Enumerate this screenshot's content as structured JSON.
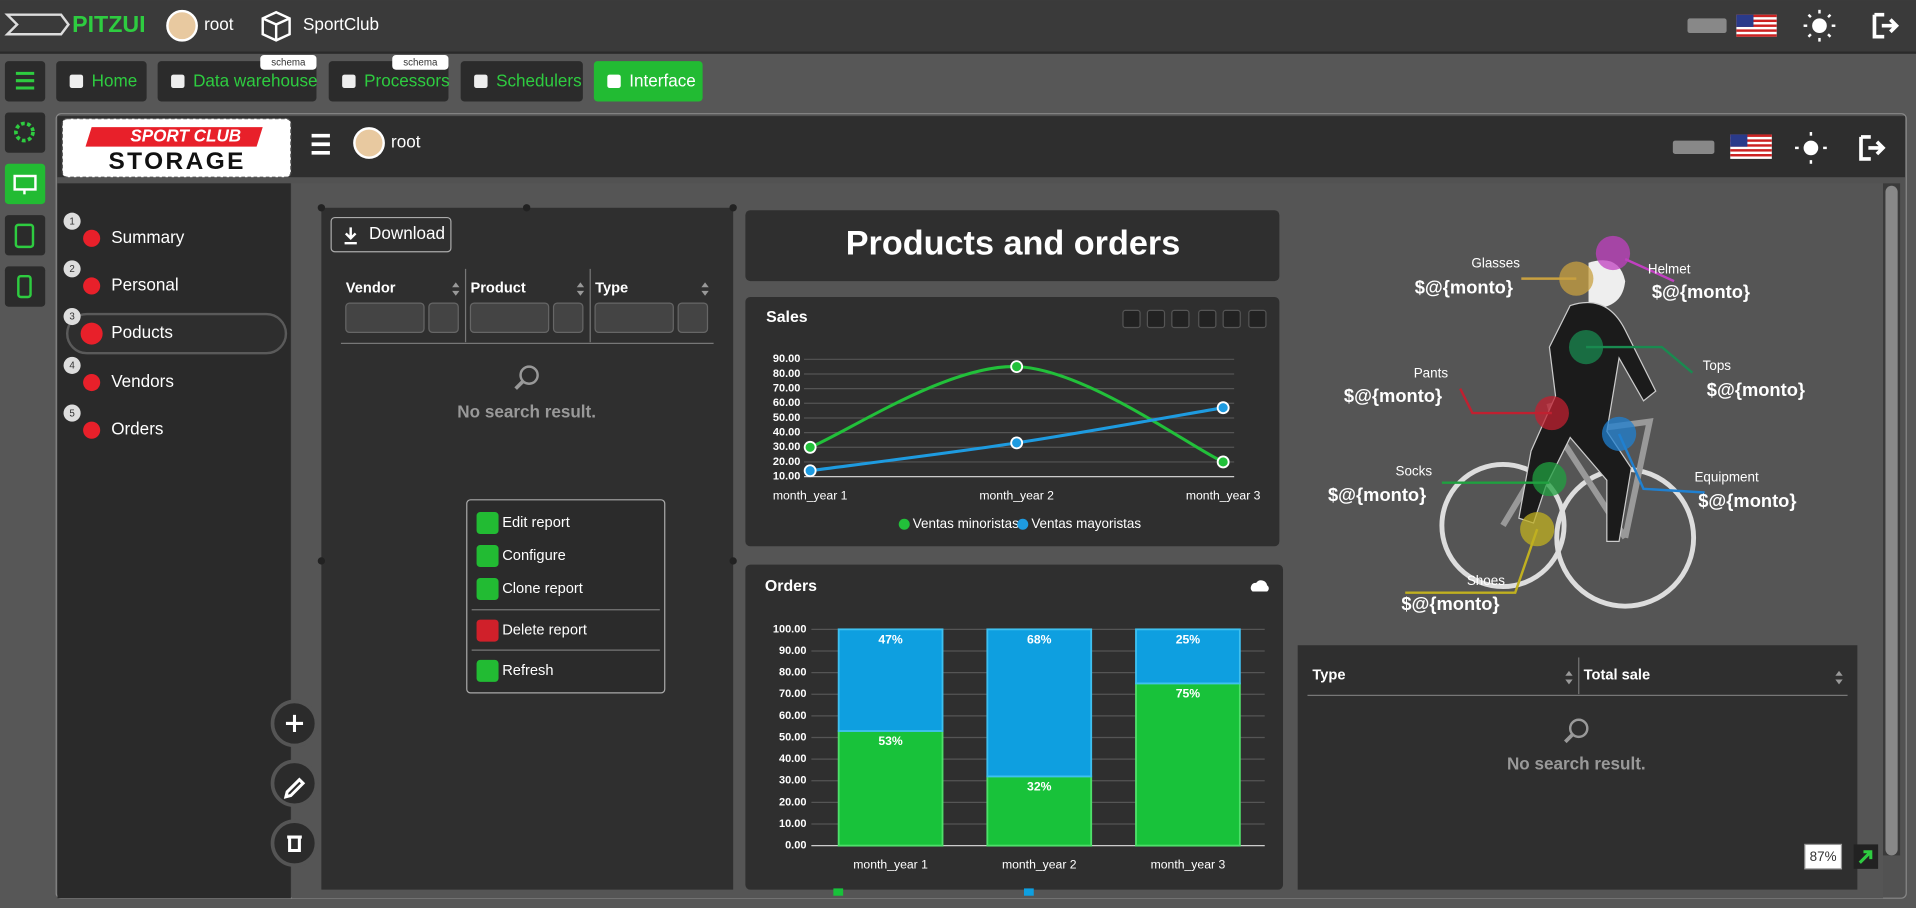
{
  "top_bar": {
    "brand": "PITZUI",
    "user": "root",
    "app": "SportClub"
  },
  "tabs": [
    {
      "label": "Home"
    },
    {
      "label": "Data warehouse",
      "badge": "schema"
    },
    {
      "label": "Processors",
      "badge": "schema"
    },
    {
      "label": "Schedulers"
    },
    {
      "label": "Interface"
    }
  ],
  "header": {
    "logo_top": "SPORT CLUB",
    "logo_bottom": "STORAGE",
    "user": "root"
  },
  "menu": [
    {
      "number": 1,
      "label": "Summary"
    },
    {
      "number": 2,
      "label": "Personal"
    },
    {
      "number": 3,
      "label": "Poducts"
    },
    {
      "number": 4,
      "label": "Vendors"
    },
    {
      "number": 5,
      "label": "Orders"
    }
  ],
  "report_table": {
    "download": "Download",
    "columns": [
      "Vendor",
      "Product",
      "Type"
    ],
    "empty": "No search result."
  },
  "context_menu": [
    "Edit report",
    "Configure",
    "Clone report",
    "Delete report",
    "Refresh"
  ],
  "dashboard_title": "Products and orders",
  "chart_data": [
    {
      "type": "line",
      "title": "Sales",
      "categories": [
        "month_year 1",
        "month_year 2",
        "month_year 3"
      ],
      "series": [
        {
          "name": "Ventas minoristas",
          "color": "#22c03a",
          "values": [
            30,
            85,
            20
          ]
        },
        {
          "name": "Ventas mayoristas",
          "color": "#1e9be0",
          "values": [
            14,
            33,
            57
          ]
        }
      ],
      "ylim": [
        10,
        90
      ],
      "yticks": [
        {
          "value": 10,
          "label": "10.00"
        },
        {
          "value": 20,
          "label": "20.00"
        },
        {
          "value": 30,
          "label": "30.00"
        },
        {
          "value": 40,
          "label": "40.00"
        },
        {
          "value": 50,
          "label": "50.00"
        },
        {
          "value": 60,
          "label": "60.00"
        },
        {
          "value": 70,
          "label": "70.00"
        },
        {
          "value": 80,
          "label": "80.00"
        },
        {
          "value": 90,
          "label": "90.00"
        }
      ],
      "grid": true
    },
    {
      "type": "bar",
      "stacked": true,
      "title": "Orders",
      "categories": [
        "month_year 1",
        "month_year 2",
        "month_year 3"
      ],
      "series": [
        {
          "color": "#18c23a",
          "values": [
            53,
            32,
            75
          ],
          "value_labels": [
            "53%",
            "32%",
            "75%"
          ]
        },
        {
          "color": "#0e9fe0",
          "values": [
            47,
            68,
            25
          ],
          "value_labels": [
            "47%",
            "68%",
            "25%"
          ]
        }
      ],
      "ylim": [
        0,
        100
      ],
      "yticks": [
        {
          "value": 0,
          "label": "0.00"
        },
        {
          "value": 10,
          "label": "10.00"
        },
        {
          "value": 20,
          "label": "20.00"
        },
        {
          "value": 30,
          "label": "30.00"
        },
        {
          "value": 40,
          "label": "40.00"
        },
        {
          "value": 50,
          "label": "50.00"
        },
        {
          "value": 60,
          "label": "60.00"
        },
        {
          "value": 70,
          "label": "70.00"
        },
        {
          "value": 80,
          "label": "80.00"
        },
        {
          "value": 90,
          "label": "90.00"
        },
        {
          "value": 100,
          "label": "100.00"
        }
      ],
      "grid": true
    }
  ],
  "products_image": {
    "labels": [
      {
        "name": "Glasses",
        "value": "$@{monto}"
      },
      {
        "name": "Helmet",
        "value": "$@{monto}"
      },
      {
        "name": "Pants",
        "value": "$@{monto}"
      },
      {
        "name": "Tops",
        "value": "$@{monto}"
      },
      {
        "name": "Socks",
        "value": "$@{monto}"
      },
      {
        "name": "Equipment",
        "value": "$@{monto}"
      },
      {
        "name": "Shoes",
        "value": "$@{monto}"
      }
    ]
  },
  "sales_table": {
    "columns": [
      "Type",
      "Total sale"
    ],
    "empty": "No search result."
  },
  "zoom": "87%"
}
